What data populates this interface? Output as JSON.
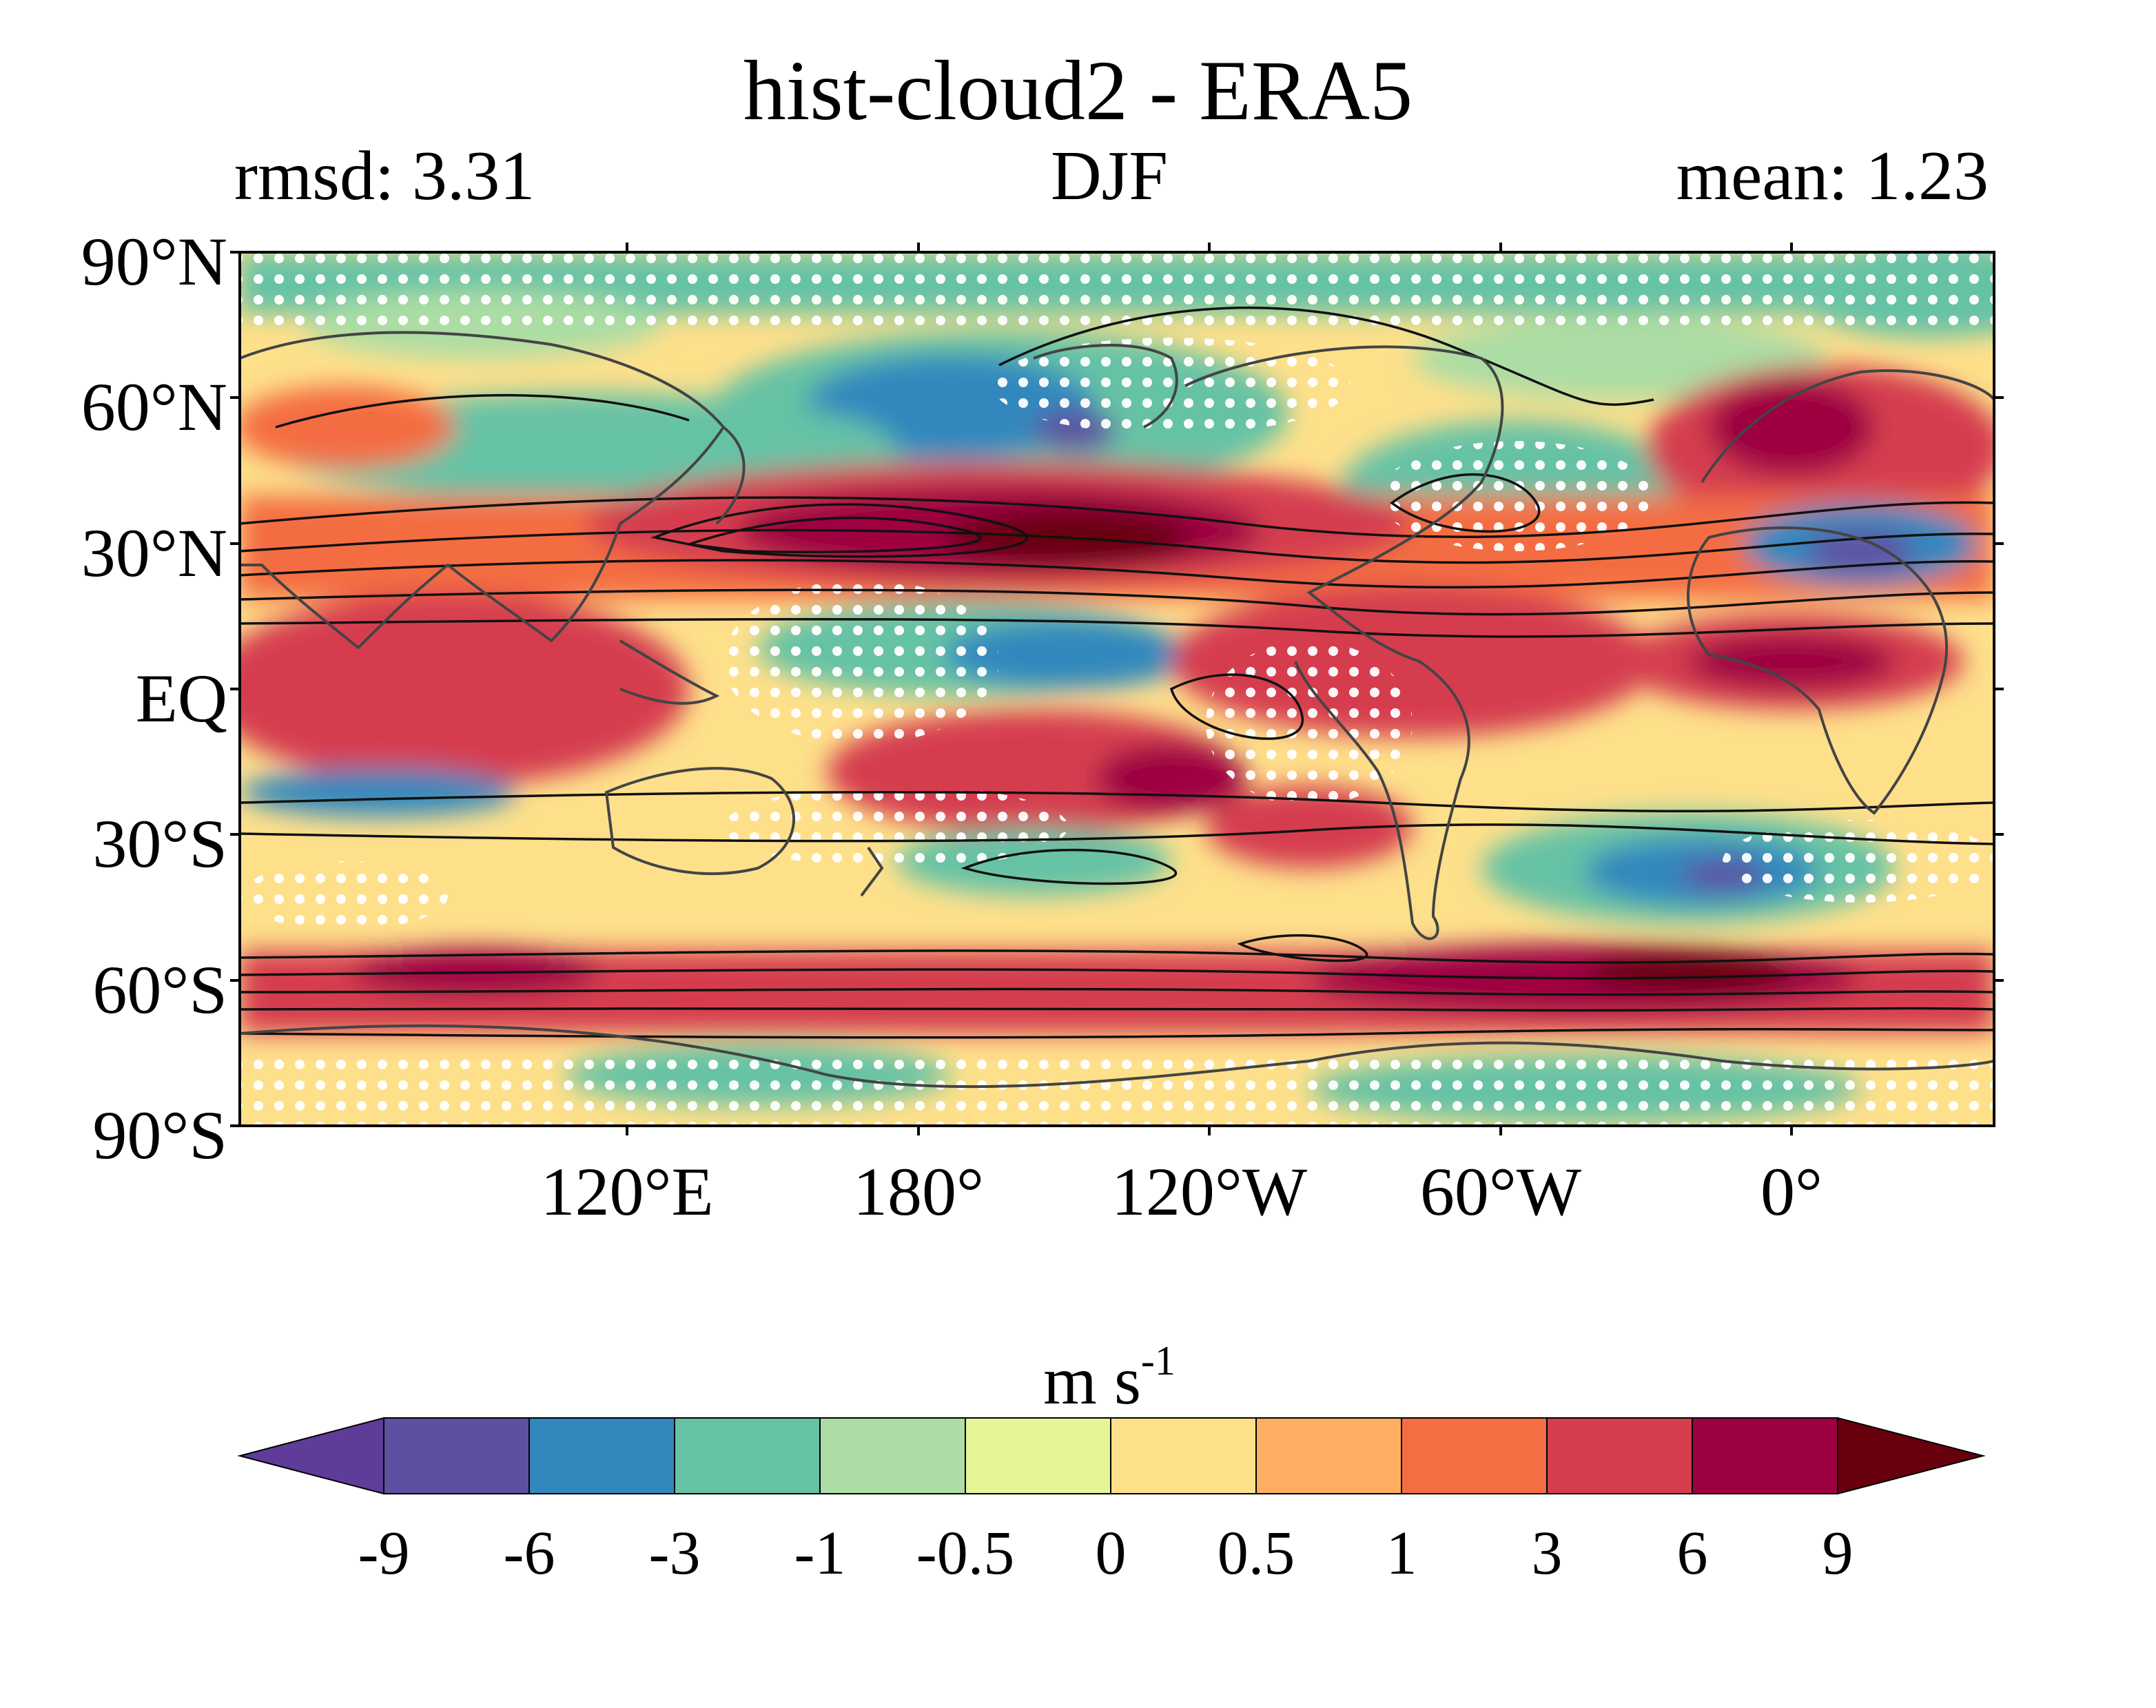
{
  "title": "hist-cloud2 - ERA5",
  "stats": {
    "left": "rmsd: 3.31",
    "center": "DJF",
    "right": "mean: 1.23"
  },
  "map": {
    "lat_ticks": [
      "90°N",
      "60°N",
      "30°N",
      "EQ",
      "30°S",
      "60°S",
      "90°S"
    ],
    "lon_ticks": [
      "120°E",
      "180°",
      "120°W",
      "60°W",
      "0°"
    ],
    "stipple_color": "#ffffff",
    "contour_color": "#111111",
    "coast_color": "#444444"
  },
  "colorbar": {
    "unit_base": "m s",
    "unit_exp": "-1",
    "levels": [
      "-9",
      "-6",
      "-3",
      "-1",
      "-0.5",
      "0",
      "0.5",
      "1",
      "3",
      "6",
      "9"
    ],
    "colors": [
      "#5e3c99",
      "#5e4fa2",
      "#3288bd",
      "#66c2a5",
      "#abdda4",
      "#e6f598",
      "#fee08b",
      "#fdae61",
      "#f46d43",
      "#d53e4f",
      "#9e0142",
      "#67000d"
    ]
  }
}
